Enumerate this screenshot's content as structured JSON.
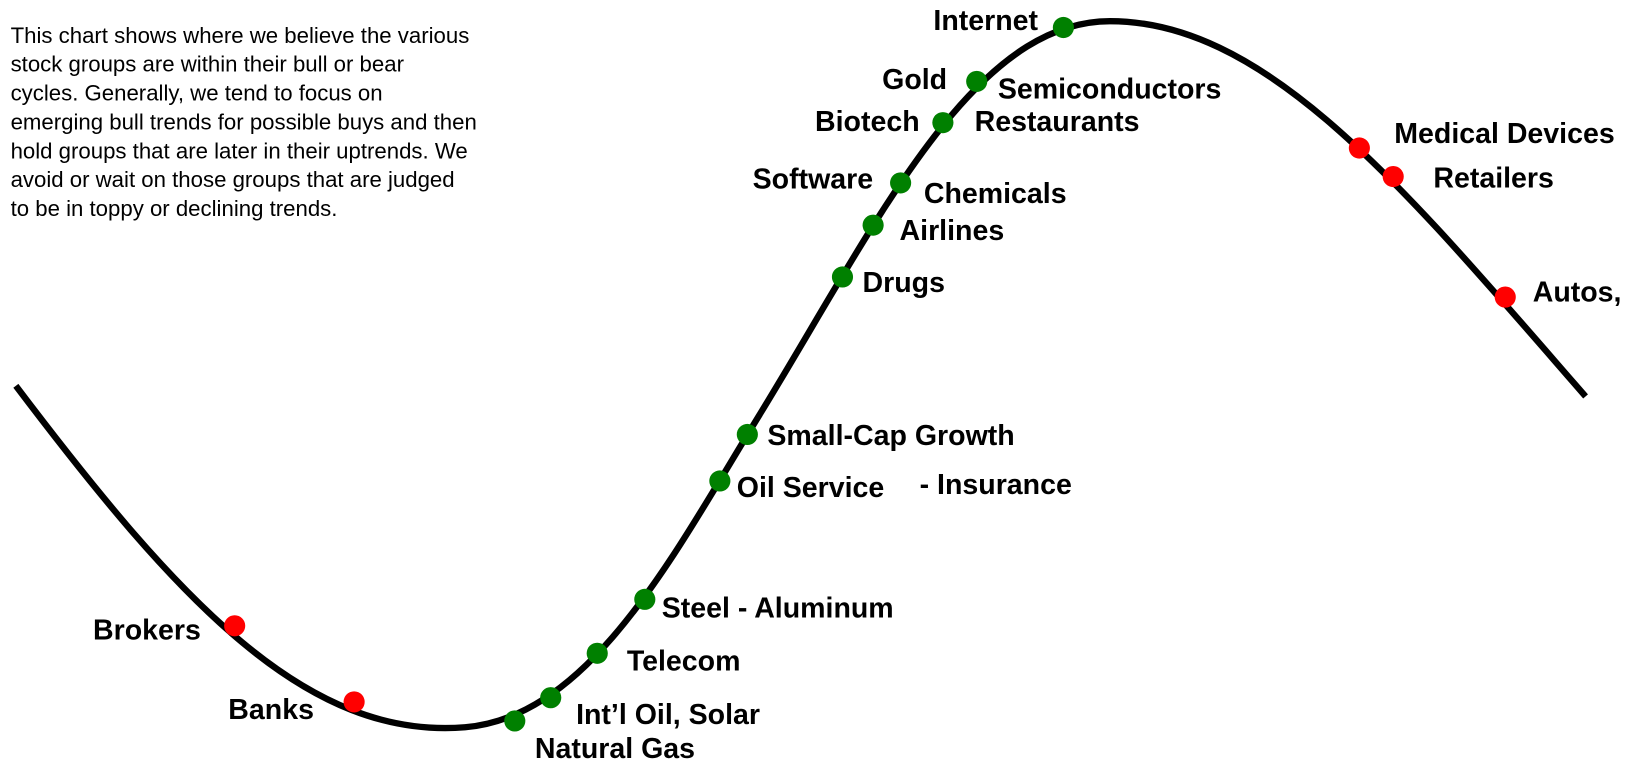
{
  "description": [
    "This chart shows where we believe the various",
    "stock groups are within their bull or bear",
    "cycles.  Generally, we tend to focus on",
    "emerging bull trends for possible buys and then",
    "hold groups that are later in their uptrends. We",
    "avoid or wait on those groups that are judged",
    "to be in toppy or declining trends."
  ],
  "nodes": [
    {
      "labels": [
        "Brokers"
      ],
      "color": "#ff0000"
    },
    {
      "labels": [
        "Banks"
      ],
      "color": "#ff0000"
    },
    {
      "labels": [
        "Natural Gas"
      ],
      "color": "#008000"
    },
    {
      "labels": [
        "Int’l Oil,  Solar"
      ],
      "color": "#008000"
    },
    {
      "labels": [
        "Telecom"
      ],
      "color": "#008000"
    },
    {
      "labels": [
        "Steel - Aluminum"
      ],
      "color": "#008000"
    },
    {
      "labels": [
        "Oil Service",
        "- Insurance"
      ],
      "color": "#008000"
    },
    {
      "labels": [
        "Small-Cap Growth"
      ],
      "color": "#008000"
    },
    {
      "labels": [
        "Drugs"
      ],
      "color": "#008000"
    },
    {
      "labels": [
        "Airlines"
      ],
      "color": "#008000"
    },
    {
      "labels": [
        "Software",
        "Chemicals"
      ],
      "color": "#008000"
    },
    {
      "labels": [
        "Biotech",
        "Restaurants"
      ],
      "color": "#008000"
    },
    {
      "labels": [
        "Gold",
        "Semiconductors"
      ],
      "color": "#008000"
    },
    {
      "labels": [
        "Internet"
      ],
      "color": "#008000"
    },
    {
      "labels": [
        "Medical Devices"
      ],
      "color": "#ff0000"
    },
    {
      "labels": [
        "Retailers"
      ],
      "color": "#ff0000"
    },
    {
      "labels": [
        "Autos,"
      ],
      "color": "#ff0000"
    }
  ]
}
